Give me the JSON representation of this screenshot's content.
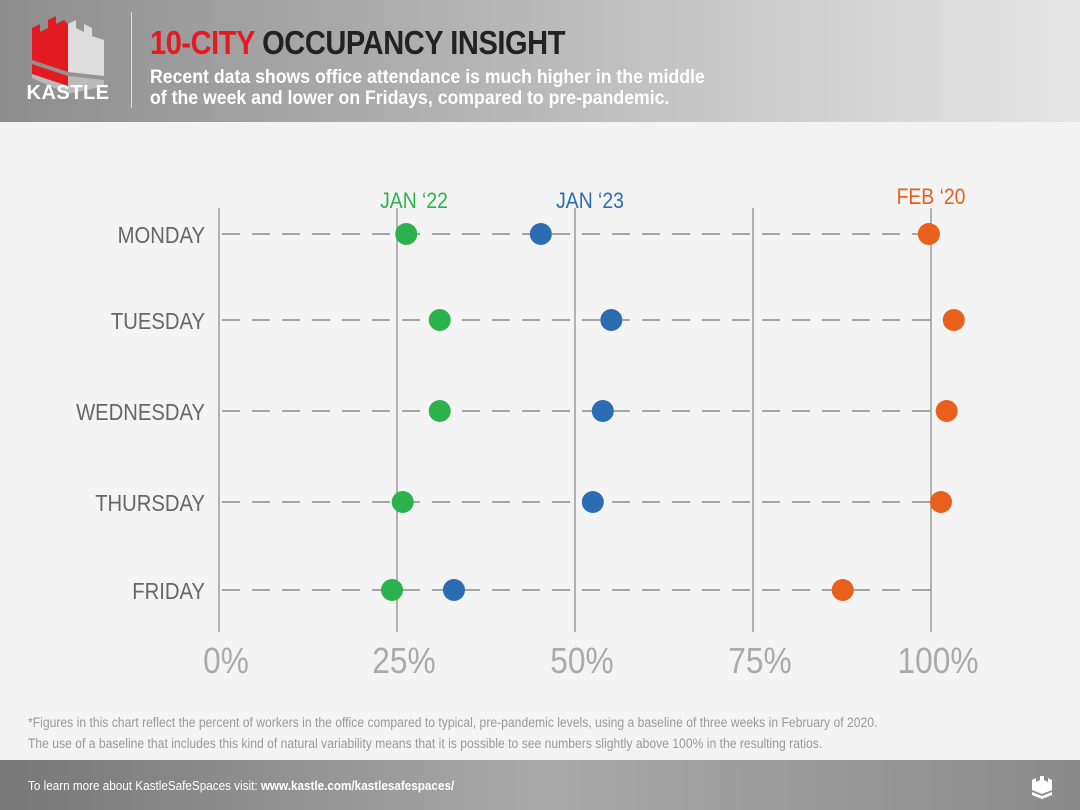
{
  "header": {
    "logo_text": "KASTLE",
    "title_red": "10-CITY",
    "title_dark": "OCCUPANCY INSIGHT",
    "subtitle_line1": "Recent data shows office attendance is much higher in the middle",
    "subtitle_line2": "of the week and lower on Fridays, compared to pre-pandemic."
  },
  "chart_data": {
    "type": "scatter",
    "categories": [
      "MONDAY",
      "TUESDAY",
      "WEDNESDAY",
      "THURSDAY",
      "FRIDAY"
    ],
    "x_ticks": [
      "0%",
      "25%",
      "50%",
      "75%",
      "100%"
    ],
    "xlim": [
      0,
      100
    ],
    "grid": true,
    "series": [
      {
        "name": "JAN ‘22",
        "color": "#2bb24c",
        "values": [
          26.3,
          31.0,
          31.0,
          25.8,
          24.3
        ]
      },
      {
        "name": "JAN ‘23",
        "color": "#2b6cb3",
        "values": [
          45.2,
          55.1,
          53.9,
          52.5,
          33.0
        ]
      },
      {
        "name": "FEB ‘20",
        "color": "#e8601c",
        "values": [
          99.7,
          103.2,
          102.2,
          101.4,
          87.6
        ]
      }
    ]
  },
  "footnote": {
    "line1": "*Figures in this chart reflect the percent of workers in the office compared to typical, pre-pandemic levels, using a baseline of three weeks in February of 2020.",
    "line2": "The use of a baseline that includes this kind of natural variability means that it is possible to see numbers slightly above 100% in the resulting ratios."
  },
  "footer": {
    "text": "To learn more about KastleSafeSpaces visit: ",
    "link": "www.kastle.com/kastlesafespaces/"
  }
}
